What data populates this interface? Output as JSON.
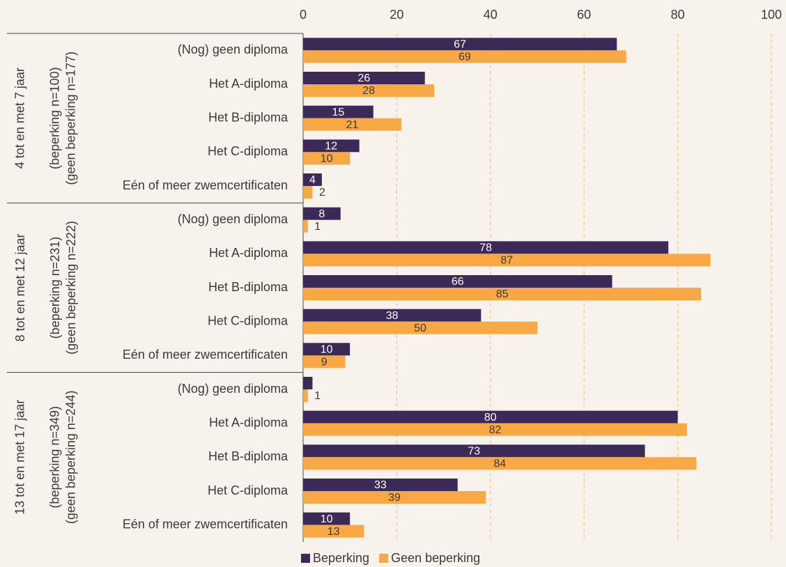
{
  "chart_data": {
    "type": "bar",
    "orientation": "horizontal",
    "categories": [
      "(Nog) geen diploma",
      "Het A-diploma",
      "Het B-diploma",
      "Het C-diploma",
      "Eén of meer zwemcertificaten",
      "(Nog) geen diploma",
      "Het A-diploma",
      "Het B-diploma",
      "Het C-diploma",
      "Eén of meer zwemcertificaten",
      "(Nog) geen diploma",
      "Het A-diploma",
      "Het B-diploma",
      "Het C-diploma",
      "Eén of meer zwemcertificaten"
    ],
    "groups": [
      {
        "label": "4 tot en met 7 jaar",
        "sublabels": [
          "(beperking n=100)",
          "(geen beperking n=177)"
        ]
      },
      {
        "label": "8 tot en met 12 jaar",
        "sublabels": [
          "(beperking n=231)",
          "(geen beperking n=222)"
        ]
      },
      {
        "label": "13 tot en met 17 jaar",
        "sublabels": [
          "(beperking n=349)",
          "(geen beperking n=244)"
        ]
      }
    ],
    "series": [
      {
        "name": "Beperking",
        "color": "#3b2a58",
        "values": [
          67,
          26,
          15,
          12,
          4,
          8,
          78,
          66,
          38,
          10,
          2,
          80,
          73,
          33,
          10
        ],
        "value_labels": [
          "67",
          "26",
          "15",
          "12",
          "4",
          "8",
          "78",
          "66",
          "38",
          "10",
          null,
          "80",
          "73",
          "33",
          "10"
        ]
      },
      {
        "name": "Geen beperking",
        "color": "#f8a945",
        "values": [
          69,
          28,
          21,
          10,
          2,
          1,
          87,
          85,
          50,
          9,
          1,
          82,
          84,
          39,
          13
        ],
        "value_labels": [
          "69",
          "28",
          "21",
          "10",
          "2",
          "1",
          "87",
          "85",
          "50",
          "9",
          "1",
          "82",
          "84",
          "39",
          "13"
        ]
      }
    ],
    "xlim": [
      0,
      100
    ],
    "xticks": [
      0,
      20,
      40,
      60,
      80,
      100
    ],
    "grid": true,
    "legend": "bottom"
  }
}
